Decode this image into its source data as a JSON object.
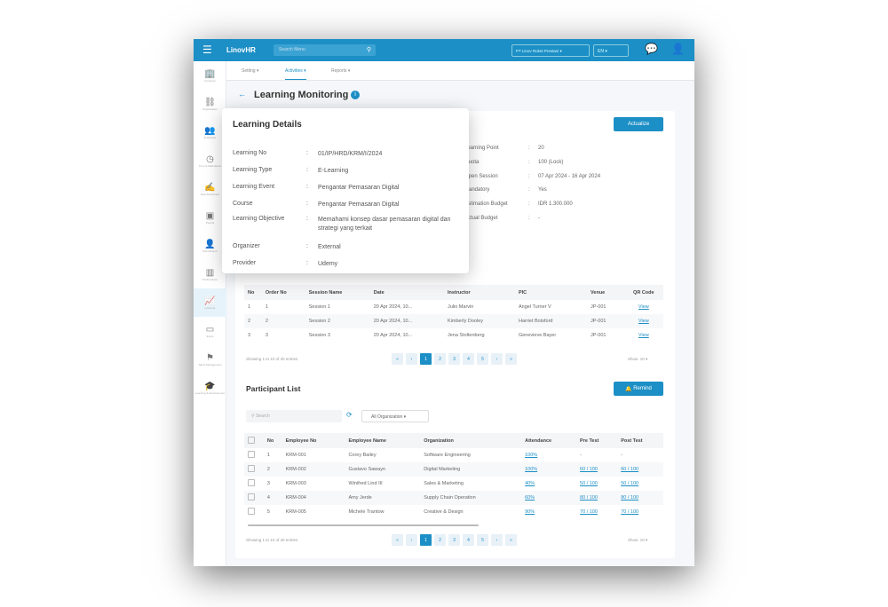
{
  "header": {
    "logo": "LinovHR",
    "search_placeholder": "Search Menu",
    "company": "PT Linov Roket Prestasi",
    "language": "EN"
  },
  "subnav": [
    "Setting",
    "Activities",
    "Reports"
  ],
  "sidebar": [
    "Company",
    "Organization",
    "Employee",
    "Time & Attendance",
    "Reimbursement",
    "Payroll",
    "Recruitment",
    "Performance",
    "Learning",
    "Event",
    "Talent Management",
    "Learning & Development"
  ],
  "page": {
    "title": "Learning Monitoring",
    "actualize": "Actualize"
  },
  "details_right": [
    [
      "Learning Point",
      "20"
    ],
    [
      "Quota",
      "100 (Lock)"
    ],
    [
      "Open Session",
      "07 Apr 2024 - 16 Apr 2024"
    ],
    [
      "Mandatory",
      "Yes"
    ],
    [
      "Estimation Budget",
      "IDR 1.300.000"
    ],
    [
      "Actual Budget",
      "-"
    ]
  ],
  "popup": {
    "title": "Learning Details",
    "rows": [
      [
        "Learning No",
        "01/IP/HRD/KRM/I/2024"
      ],
      [
        "Learning Type",
        "E-Learning"
      ],
      [
        "Learning Event",
        "Pengantar Pemasaran Digital"
      ],
      [
        "Course",
        "Pengantar Pemasaran Digital"
      ],
      [
        "Learning Objective",
        "Memahami konsep dasar pemasaran digital dan strategi yang terkait"
      ],
      [
        "Organizer",
        "External"
      ],
      [
        "Provider",
        "Udemy"
      ]
    ]
  },
  "sessions": {
    "headers": [
      "No",
      "Order No",
      "Session Name",
      "Date",
      "Instructor",
      "PIC",
      "Venue",
      "QR Code"
    ],
    "rows": [
      [
        "1",
        "1",
        "Session 1",
        "20 Apr 2024, 10...",
        "Julio Marvin",
        "Angel Turner V",
        "JP-001",
        "View"
      ],
      [
        "2",
        "2",
        "Session 2",
        "20 Apr 2024, 10...",
        "Kimberly Dooley",
        "Harriet Botsford",
        "JP-001",
        "View"
      ],
      [
        "3",
        "3",
        "Session 3",
        "20 Apr 2024, 10...",
        "Jena Stoltenberg",
        "Genevieve Bayer",
        "JP-001",
        "View"
      ]
    ],
    "showing": "Showing 1 to 10 of 40 entries",
    "show_label": "Show",
    "show_value": "10"
  },
  "pagination": [
    "«",
    "‹",
    "1",
    "2",
    "3",
    "4",
    "5",
    "›",
    "»"
  ],
  "participants": {
    "title": "Participant List",
    "remind": "Remind",
    "search_placeholder": "Search",
    "org_filter": "All Organization",
    "headers": [
      "No",
      "Employee No",
      "Employee Name",
      "Organization",
      "Attendance",
      "Pre Test",
      "Post Test"
    ],
    "rows": [
      [
        "1",
        "KRM-001",
        "Corey Bailey",
        "Software Engineering",
        "100%",
        "-",
        "-"
      ],
      [
        "2",
        "KRM-002",
        "Gustavo Sawayn",
        "Digital Marketing",
        "100%",
        "60 / 100",
        "60 / 100"
      ],
      [
        "3",
        "KRM-003",
        "Winifred Lind III",
        "Sales & Marketing",
        "40%",
        "50 / 100",
        "50 / 100"
      ],
      [
        "4",
        "KRM-004",
        "Amy Jerde",
        "Supply Chain Operation",
        "60%",
        "80 / 100",
        "80 / 100"
      ],
      [
        "5",
        "KRM-005",
        "Michele Trantow",
        "Creative & Design",
        "90%",
        "70 / 100",
        "70 / 100"
      ]
    ],
    "showing": "Showing 1 to 10 of 40 entries",
    "show_label": "Show",
    "show_value": "10"
  },
  "colors": {
    "primary": "#1c8fc6"
  }
}
